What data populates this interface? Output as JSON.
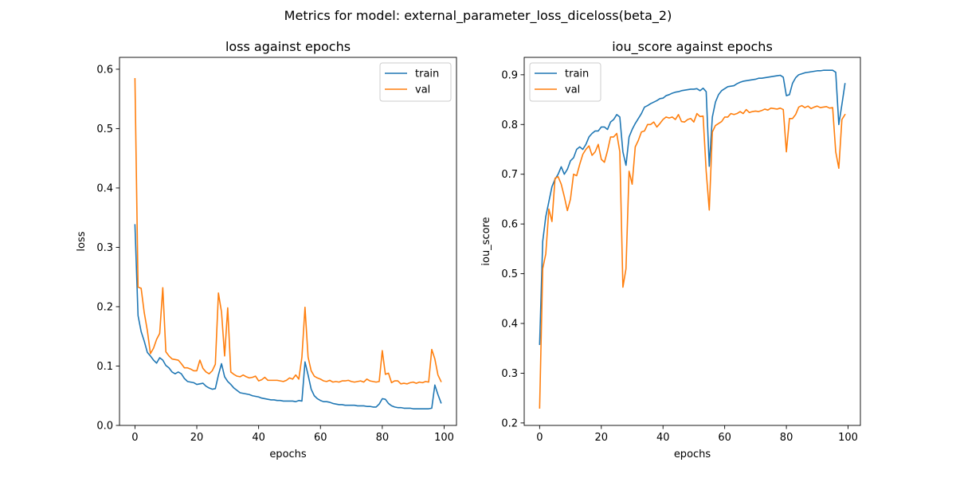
{
  "figure": {
    "suptitle": "Metrics for model: external_parameter_loss_diceloss(beta_2)"
  },
  "colors": {
    "train": "#1f77b4",
    "val": "#ff7f0e"
  },
  "chart_data": [
    {
      "type": "line",
      "title": "loss against epochs",
      "xlabel": "epochs",
      "ylabel": "loss",
      "xlim": [
        -5,
        104
      ],
      "ylim": [
        0,
        0.62
      ],
      "xticks": [
        0,
        20,
        40,
        60,
        80,
        100
      ],
      "yticks": [
        0.0,
        0.1,
        0.2,
        0.3,
        0.4,
        0.5,
        0.6
      ],
      "ytick_labels": [
        "0.0",
        "0.1",
        "0.2",
        "0.3",
        "0.4",
        "0.5",
        "0.6"
      ],
      "grid": false,
      "legend": "upper right",
      "series": [
        {
          "name": "train",
          "color": "#1f77b4",
          "values": [
            0.338,
            0.185,
            0.158,
            0.142,
            0.123,
            0.117,
            0.11,
            0.105,
            0.114,
            0.11,
            0.101,
            0.097,
            0.09,
            0.087,
            0.09,
            0.087,
            0.079,
            0.074,
            0.073,
            0.072,
            0.069,
            0.07,
            0.071,
            0.066,
            0.063,
            0.061,
            0.062,
            0.085,
            0.104,
            0.082,
            0.074,
            0.069,
            0.063,
            0.059,
            0.055,
            0.054,
            0.053,
            0.052,
            0.05,
            0.049,
            0.048,
            0.046,
            0.045,
            0.044,
            0.043,
            0.043,
            0.042,
            0.042,
            0.041,
            0.041,
            0.041,
            0.041,
            0.04,
            0.042,
            0.041,
            0.107,
            0.085,
            0.061,
            0.05,
            0.045,
            0.042,
            0.04,
            0.04,
            0.039,
            0.037,
            0.036,
            0.035,
            0.035,
            0.034,
            0.034,
            0.034,
            0.034,
            0.033,
            0.033,
            0.033,
            0.032,
            0.032,
            0.031,
            0.031,
            0.036,
            0.045,
            0.044,
            0.037,
            0.033,
            0.031,
            0.03,
            0.03,
            0.029,
            0.029,
            0.029,
            0.028,
            0.028,
            0.028,
            0.028,
            0.028,
            0.028,
            0.029,
            0.068,
            0.052,
            0.038
          ]
        },
        {
          "name": "val",
          "color": "#ff7f0e",
          "values": [
            0.584,
            0.233,
            0.231,
            0.19,
            0.16,
            0.121,
            0.13,
            0.145,
            0.155,
            0.232,
            0.124,
            0.117,
            0.112,
            0.111,
            0.11,
            0.104,
            0.097,
            0.097,
            0.095,
            0.092,
            0.092,
            0.11,
            0.096,
            0.09,
            0.087,
            0.092,
            0.103,
            0.223,
            0.191,
            0.117,
            0.198,
            0.09,
            0.086,
            0.083,
            0.082,
            0.085,
            0.082,
            0.08,
            0.081,
            0.083,
            0.075,
            0.077,
            0.081,
            0.076,
            0.076,
            0.076,
            0.076,
            0.075,
            0.074,
            0.076,
            0.08,
            0.078,
            0.085,
            0.078,
            0.115,
            0.199,
            0.115,
            0.092,
            0.083,
            0.08,
            0.078,
            0.075,
            0.074,
            0.076,
            0.073,
            0.074,
            0.073,
            0.075,
            0.075,
            0.076,
            0.074,
            0.073,
            0.074,
            0.075,
            0.073,
            0.078,
            0.075,
            0.074,
            0.073,
            0.074,
            0.126,
            0.086,
            0.088,
            0.072,
            0.075,
            0.075,
            0.07,
            0.071,
            0.07,
            0.072,
            0.073,
            0.071,
            0.073,
            0.072,
            0.074,
            0.073,
            0.128,
            0.112,
            0.085,
            0.074
          ]
        }
      ]
    },
    {
      "type": "line",
      "title": "iou_score against epochs",
      "xlabel": "epochs",
      "ylabel": "iou_score",
      "xlim": [
        -5,
        104
      ],
      "ylim": [
        0.195,
        0.935
      ],
      "xticks": [
        0,
        20,
        40,
        60,
        80,
        100
      ],
      "yticks": [
        0.2,
        0.3,
        0.4,
        0.5,
        0.6,
        0.7,
        0.8,
        0.9
      ],
      "ytick_labels": [
        "0.2",
        "0.3",
        "0.4",
        "0.5",
        "0.6",
        "0.7",
        "0.8",
        "0.9"
      ],
      "grid": false,
      "legend": "upper left",
      "series": [
        {
          "name": "train",
          "color": "#1f77b4",
          "values": [
            0.358,
            0.565,
            0.615,
            0.645,
            0.675,
            0.69,
            0.7,
            0.715,
            0.7,
            0.71,
            0.727,
            0.733,
            0.75,
            0.755,
            0.75,
            0.76,
            0.775,
            0.782,
            0.787,
            0.787,
            0.795,
            0.795,
            0.79,
            0.805,
            0.81,
            0.82,
            0.815,
            0.745,
            0.718,
            0.775,
            0.79,
            0.802,
            0.812,
            0.822,
            0.835,
            0.838,
            0.842,
            0.845,
            0.848,
            0.852,
            0.853,
            0.858,
            0.86,
            0.863,
            0.865,
            0.866,
            0.868,
            0.869,
            0.87,
            0.871,
            0.871,
            0.872,
            0.868,
            0.873,
            0.866,
            0.716,
            0.815,
            0.845,
            0.86,
            0.868,
            0.872,
            0.876,
            0.877,
            0.878,
            0.882,
            0.885,
            0.887,
            0.888,
            0.889,
            0.89,
            0.891,
            0.893,
            0.893,
            0.894,
            0.895,
            0.896,
            0.897,
            0.898,
            0.899,
            0.895,
            0.858,
            0.86,
            0.883,
            0.894,
            0.9,
            0.902,
            0.904,
            0.905,
            0.906,
            0.907,
            0.908,
            0.908,
            0.909,
            0.909,
            0.909,
            0.909,
            0.905,
            0.8,
            0.84,
            0.882
          ]
        },
        {
          "name": "val",
          "color": "#ff7f0e",
          "values": [
            0.23,
            0.51,
            0.54,
            0.63,
            0.605,
            0.692,
            0.695,
            0.68,
            0.655,
            0.627,
            0.65,
            0.7,
            0.697,
            0.72,
            0.74,
            0.75,
            0.757,
            0.738,
            0.745,
            0.76,
            0.73,
            0.724,
            0.747,
            0.775,
            0.775,
            0.782,
            0.745,
            0.473,
            0.51,
            0.706,
            0.68,
            0.755,
            0.768,
            0.785,
            0.787,
            0.8,
            0.8,
            0.805,
            0.795,
            0.802,
            0.81,
            0.815,
            0.813,
            0.815,
            0.81,
            0.82,
            0.806,
            0.805,
            0.81,
            0.812,
            0.805,
            0.822,
            0.816,
            0.817,
            0.706,
            0.628,
            0.785,
            0.798,
            0.802,
            0.806,
            0.815,
            0.815,
            0.822,
            0.82,
            0.822,
            0.826,
            0.822,
            0.83,
            0.824,
            0.826,
            0.827,
            0.826,
            0.828,
            0.831,
            0.829,
            0.833,
            0.832,
            0.831,
            0.833,
            0.83,
            0.745,
            0.812,
            0.812,
            0.82,
            0.835,
            0.838,
            0.834,
            0.837,
            0.832,
            0.835,
            0.837,
            0.834,
            0.835,
            0.836,
            0.833,
            0.834,
            0.745,
            0.712,
            0.81,
            0.82
          ]
        }
      ]
    }
  ]
}
